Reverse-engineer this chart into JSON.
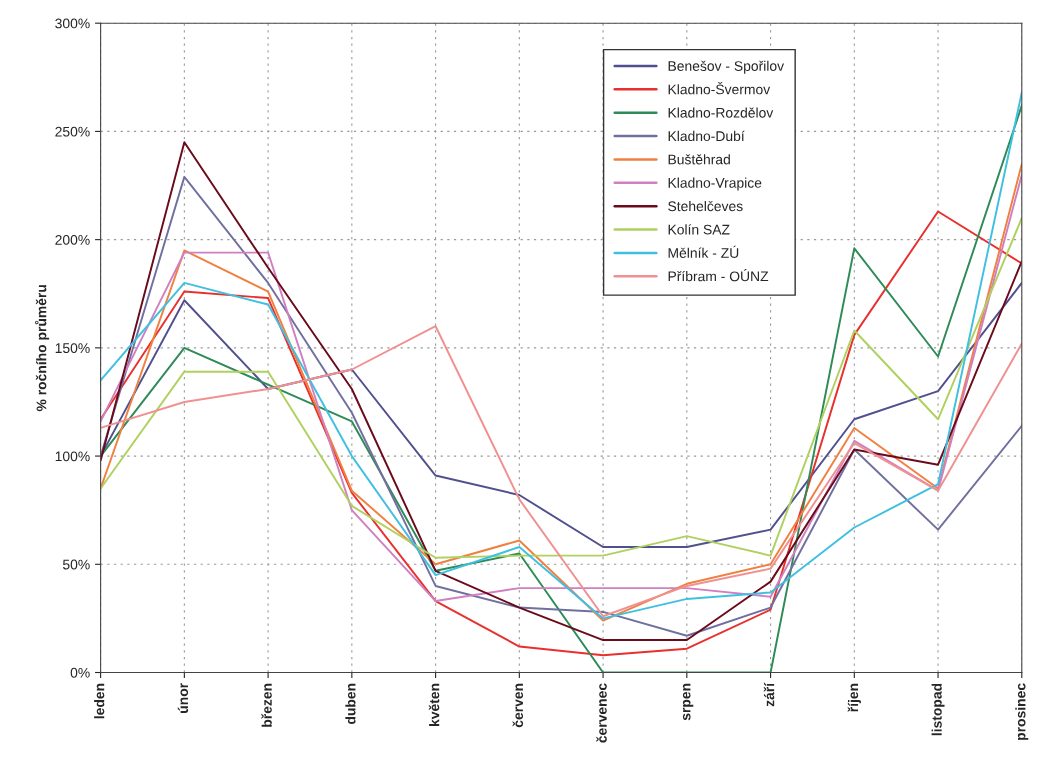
{
  "chart_data": {
    "type": "line",
    "ylabel": "% ročního průměru",
    "categories": [
      "leden",
      "únor",
      "březen",
      "duben",
      "květen",
      "červen",
      "červenec",
      "srpen",
      "září",
      "říjen",
      "listopad",
      "prosinec"
    ],
    "ylim": [
      0,
      300
    ],
    "yticks": [
      {
        "value": 0,
        "label": "0%"
      },
      {
        "value": 50,
        "label": "50%"
      },
      {
        "value": 100,
        "label": "100%"
      },
      {
        "value": 150,
        "label": "150%"
      },
      {
        "value": 200,
        "label": "200%"
      },
      {
        "value": 250,
        "label": "250%"
      },
      {
        "value": 300,
        "label": "300%"
      }
    ],
    "grid": true,
    "legend": "top",
    "marker": "none",
    "line_style": "solid",
    "series": [
      {
        "name": "Benešov - Spořilov",
        "color": "#505090",
        "values": [
          100,
          172,
          131,
          140,
          91,
          82,
          58,
          58,
          66,
          117,
          130,
          180
        ]
      },
      {
        "name": "Kladno-Švermov",
        "color": "#e8302e",
        "values": [
          117,
          176,
          173,
          83,
          33,
          12,
          8,
          11,
          29,
          156,
          213,
          189
        ]
      },
      {
        "name": "Kladno-Rozdělov",
        "color": "#2e8b57",
        "values": [
          100,
          150,
          133,
          116,
          47,
          55,
          0,
          0,
          0,
          196,
          146,
          262
        ]
      },
      {
        "name": "Kladno-Dubí",
        "color": "#7070a0",
        "values": [
          100,
          229,
          180,
          120,
          40,
          30,
          28,
          17,
          30,
          103,
          66,
          114
        ]
      },
      {
        "name": "Buštěhrad",
        "color": "#f08040",
        "values": [
          85,
          195,
          176,
          84,
          50,
          61,
          24,
          41,
          50,
          113,
          85,
          235
        ]
      },
      {
        "name": "Kladno-Vrapice",
        "color": "#d080c0",
        "values": [
          116,
          194,
          194,
          75,
          33,
          39,
          39,
          39,
          35,
          107,
          84,
          230
        ]
      },
      {
        "name": "Stehelčeves",
        "color": "#6a0a1a",
        "values": [
          98,
          245,
          187,
          131,
          47,
          30,
          15,
          15,
          42,
          103,
          96,
          190
        ]
      },
      {
        "name": "Kolín SAZ",
        "color": "#b0d060",
        "values": [
          85,
          139,
          139,
          77,
          53,
          54,
          54,
          63,
          54,
          158,
          117,
          210
        ]
      },
      {
        "name": "Mělník - ZÚ",
        "color": "#40c0e0",
        "values": [
          135,
          180,
          170,
          100,
          45,
          58,
          25,
          34,
          37,
          67,
          87,
          268
        ]
      },
      {
        "name": "Příbram - OÚNZ",
        "color": "#f09090",
        "values": [
          113,
          125,
          131,
          140,
          160,
          80,
          26,
          40,
          48,
          106,
          84,
          152
        ]
      }
    ]
  }
}
